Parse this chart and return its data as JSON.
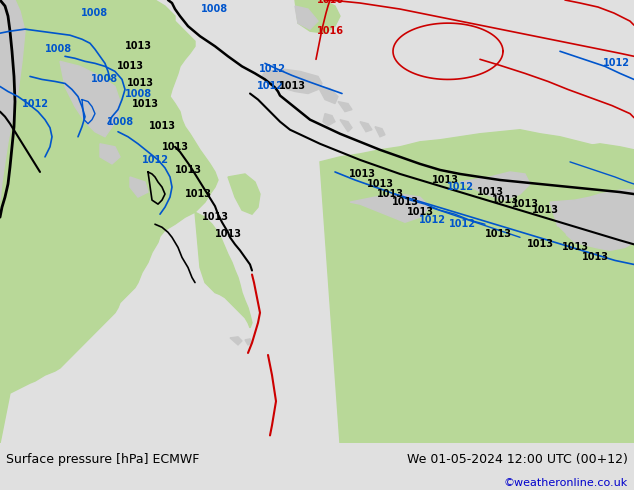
{
  "title_left": "Surface pressure [hPa] ECMWF",
  "title_right": "We 01-05-2024 12:00 UTC (00+12)",
  "credit": "©weatheronline.co.uk",
  "bg_map_color": "#e0e0e0",
  "land_green_color": "#b8d898",
  "land_gray_color": "#c8c8c8",
  "ocean_color": "#e0e0e0",
  "footer_bg": "#d8d8d8",
  "isobar_black_color": "#000000",
  "isobar_blue_color": "#0055cc",
  "isobar_red_color": "#cc0000",
  "title_fontsize": 9,
  "credit_fontsize": 8,
  "credit_color": "#0000cc",
  "label_fontsize": 7
}
